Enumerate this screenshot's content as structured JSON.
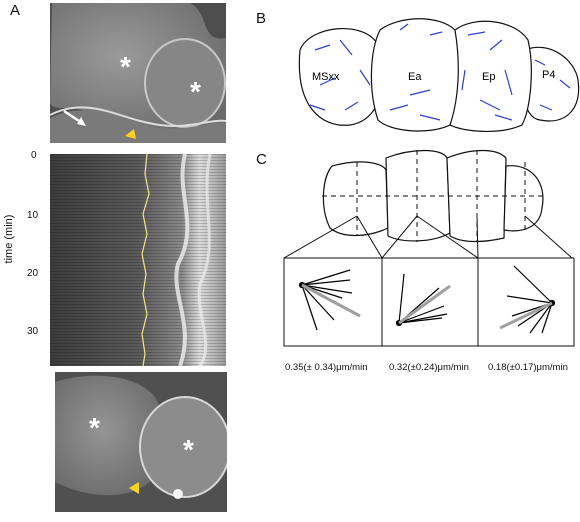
{
  "panels": {
    "a": "A",
    "b": "B",
    "c": "C"
  },
  "panelA": {
    "top": {
      "stars": [
        "*",
        "*"
      ]
    },
    "kymo": {
      "ylabel": "time (min)",
      "ticks": [
        "0",
        "10",
        "20",
        "30"
      ]
    },
    "bottom": {
      "stars": [
        "*",
        "*"
      ]
    },
    "colors": {
      "arrowhead": "#ffd21f",
      "trace": "#f2e68a"
    }
  },
  "panelB": {
    "cells": [
      "MSxx",
      "Ea",
      "Ep",
      "P4"
    ],
    "colors": {
      "vectors": "#2e3fcf"
    }
  },
  "panelC": {
    "speeds": [
      "0.35(± 0.34)μm/min",
      "0.32(±0.24)μm/min",
      "0.18(±0.17)μm/min"
    ],
    "colors": {
      "black_vectors": "#000000",
      "gray_vectors": "#a0a0a0"
    }
  }
}
